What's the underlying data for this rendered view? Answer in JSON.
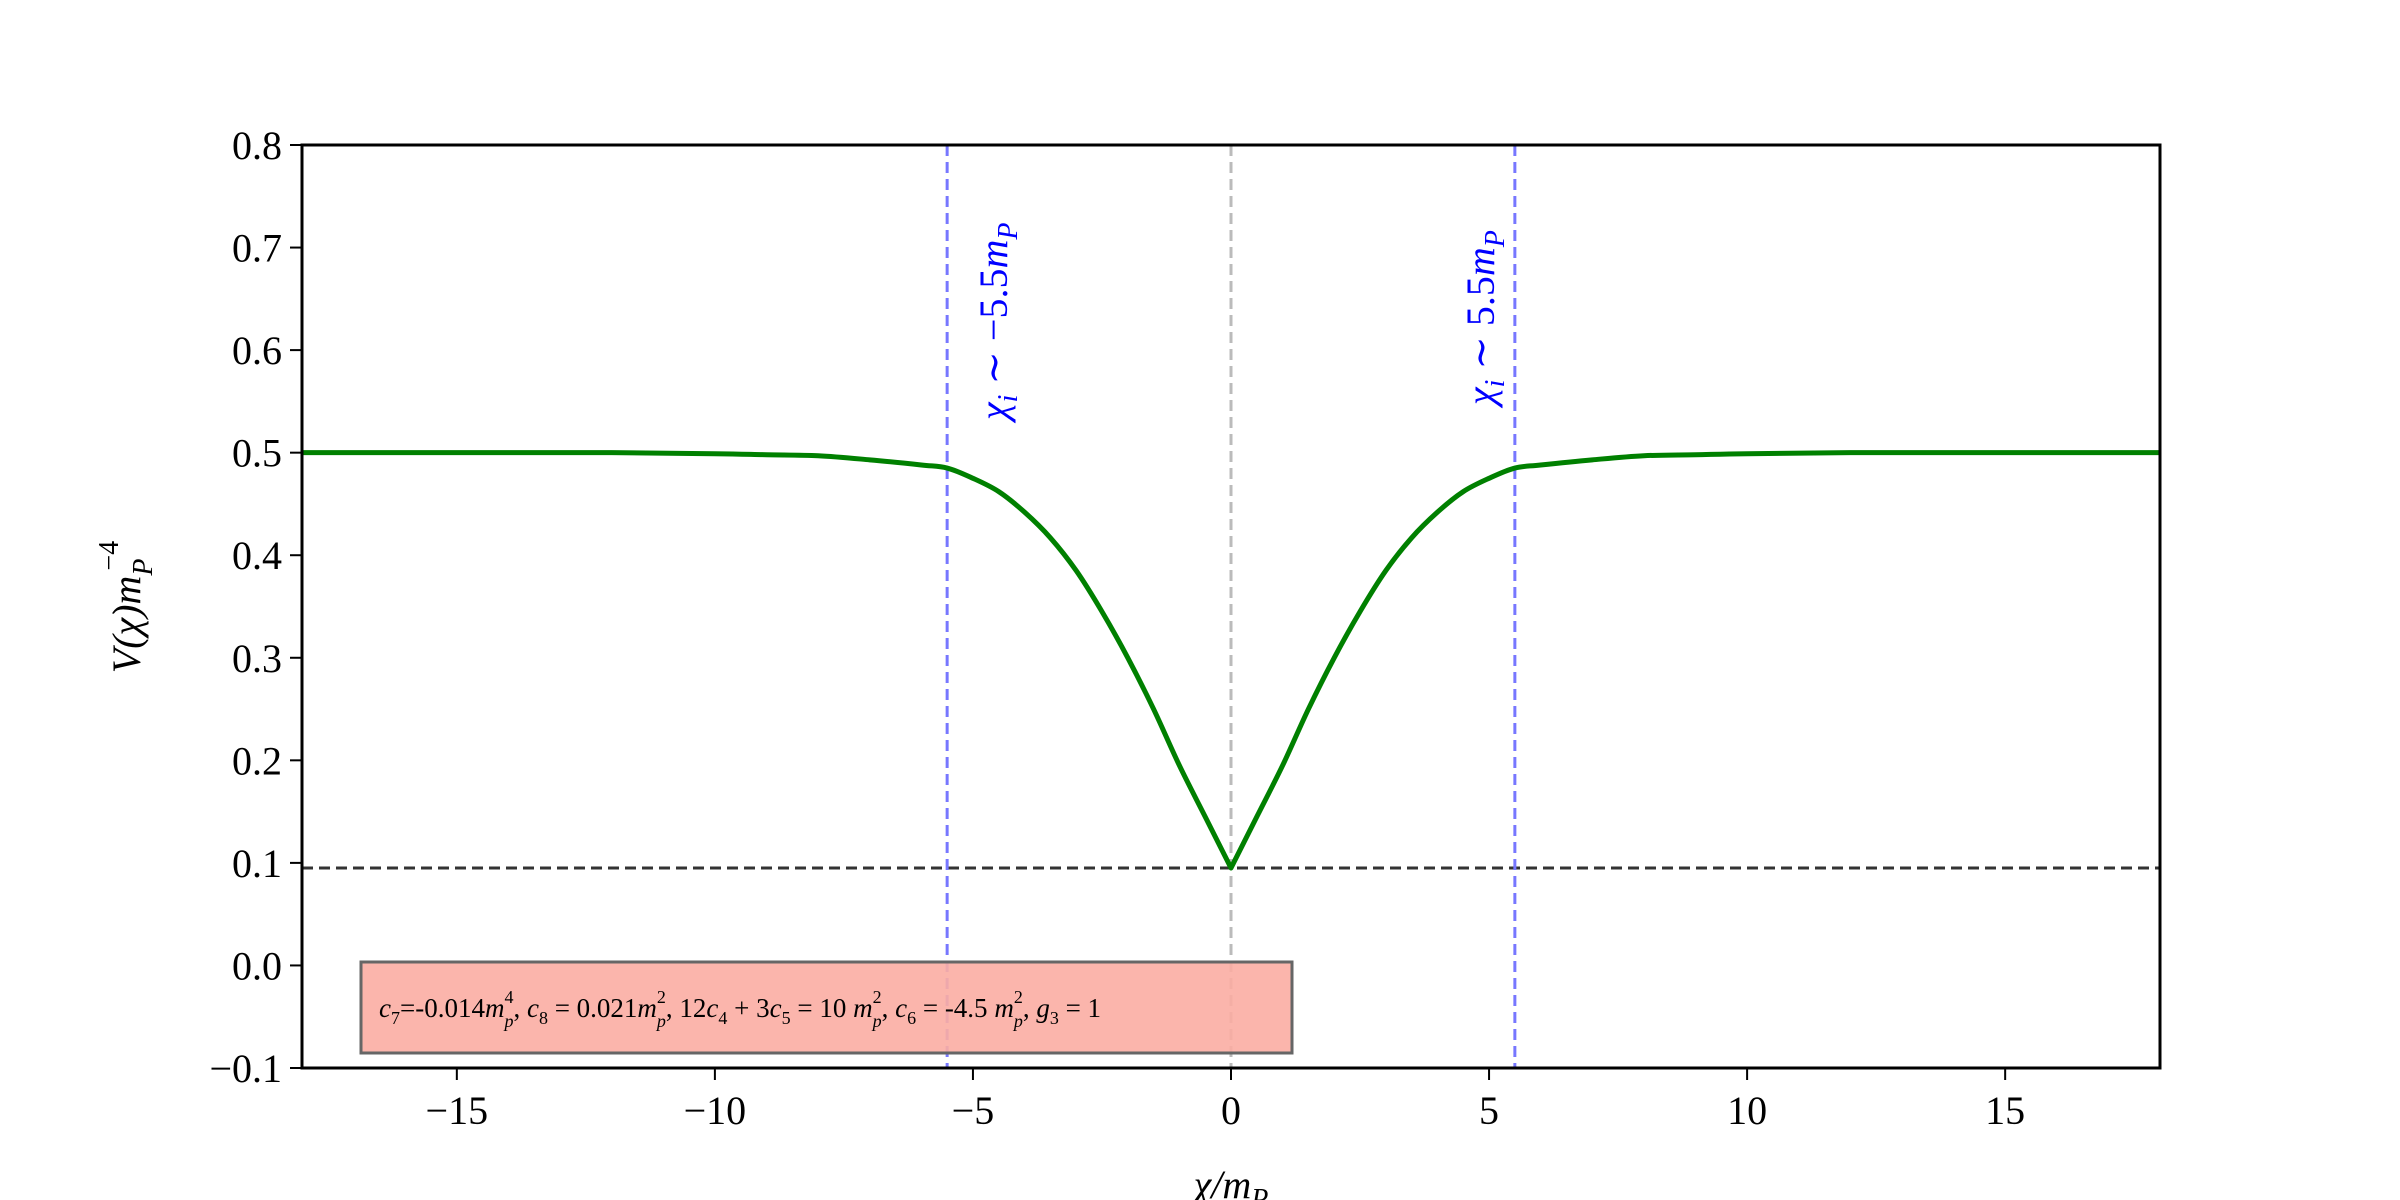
{
  "chart_data": {
    "type": "line",
    "xlabel": "χ/m_P",
    "ylabel": "V(χ)m_P^−4",
    "xlim": [
      -18,
      18
    ],
    "ylim": [
      -0.1,
      0.8
    ],
    "xticks": [
      -15,
      -10,
      -5,
      0,
      5,
      10,
      15
    ],
    "xtick_labels": [
      "−15",
      "−10",
      "−5",
      "0",
      "5",
      "10",
      "15"
    ],
    "yticks": [
      -0.1,
      0.0,
      0.1,
      0.2,
      0.3,
      0.4,
      0.5,
      0.6,
      0.7,
      0.8
    ],
    "ytick_labels": [
      "−0.1",
      "0.0",
      "0.1",
      "0.2",
      "0.3",
      "0.4",
      "0.5",
      "0.6",
      "0.7",
      "0.8"
    ],
    "series": [
      {
        "color": "#008000",
        "x": [
          -18,
          -15,
          -12,
          -10,
          -9,
          -8,
          -7,
          -6,
          -5.5,
          -5,
          -4.5,
          -4,
          -3.5,
          -3,
          -2.5,
          -2,
          -1.5,
          -1,
          -0.5,
          0,
          0.5,
          1,
          1.5,
          2,
          2.5,
          3,
          3.5,
          4,
          4.5,
          5,
          5.5,
          6,
          7,
          8,
          9,
          10,
          12,
          15,
          18
        ],
        "y": [
          0.5,
          0.5,
          0.5,
          0.499,
          0.498,
          0.497,
          0.493,
          0.488,
          0.485,
          0.475,
          0.462,
          0.442,
          0.417,
          0.385,
          0.345,
          0.3,
          0.25,
          0.195,
          0.145,
          0.095,
          0.145,
          0.195,
          0.25,
          0.3,
          0.345,
          0.385,
          0.417,
          0.442,
          0.462,
          0.475,
          0.485,
          0.488,
          0.493,
          0.497,
          0.498,
          0.499,
          0.5,
          0.5,
          0.5
        ]
      }
    ],
    "reference_lines": [
      {
        "orientation": "horizontal",
        "value": 0.095,
        "style": "dashed",
        "color": "#333333"
      },
      {
        "orientation": "vertical",
        "value": -5.5,
        "style": "dashed",
        "color": "#7777ff",
        "label": "χ_i ∼ −5.5m_P"
      },
      {
        "orientation": "vertical",
        "value": 0,
        "style": "dashed",
        "color": "#bbbbbb"
      },
      {
        "orientation": "vertical",
        "value": 5.5,
        "style": "dashed",
        "color": "#7777ff",
        "label": "χ_i ∼ 5.5m_P"
      }
    ],
    "annotation": {
      "text": "c7=-0.014mp4, c8 = 0.021mp2, 12c4+3c5 = 10 mp2, c6 = -4.5 mp2, g3 = 1",
      "background": "#fbada3"
    },
    "grid": false,
    "legend": "none"
  }
}
